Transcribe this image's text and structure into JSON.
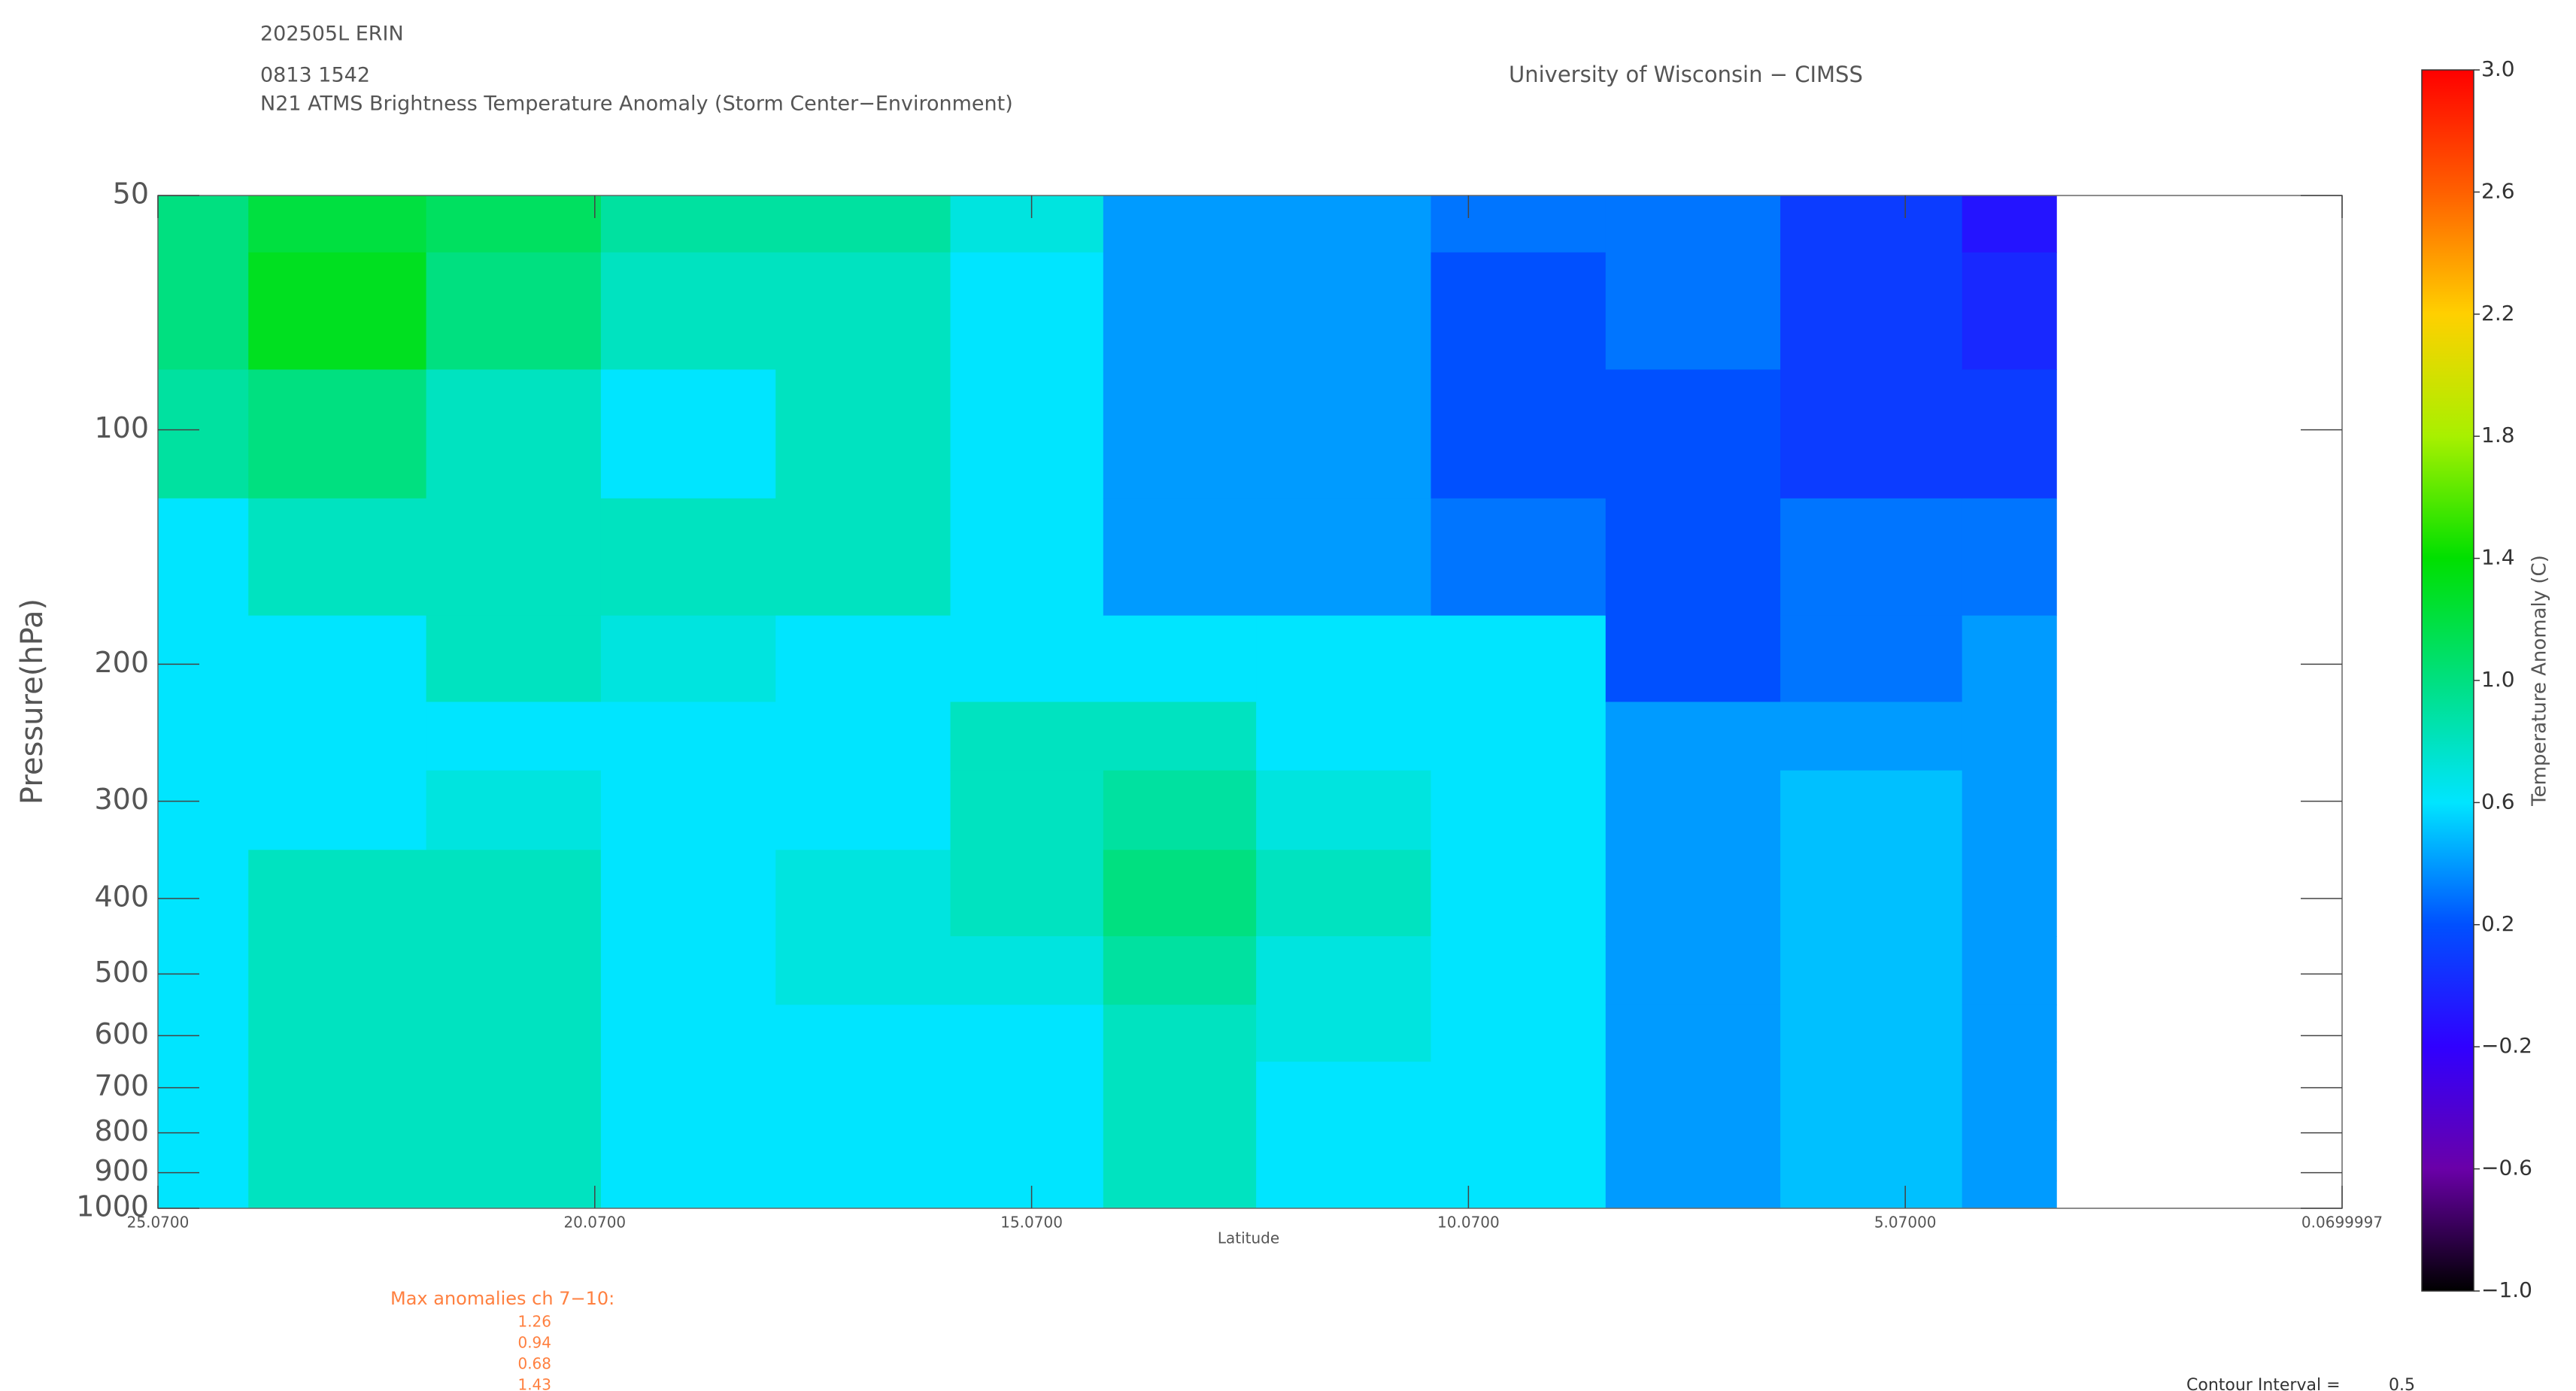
{
  "chart_data": {
    "type": "contour",
    "header": [
      "202505L ERIN",
      "0813 1542",
      "N21 ATMS Brightness Temperature Anomaly (Storm Center−Environment)"
    ],
    "source": "University of Wisconsin − CIMSS",
    "xlabel": "Latitude",
    "ylabel": "Pressure(hPa)",
    "xlim": [
      25.07,
      0.0699997
    ],
    "xticks": [
      {
        "value": 25.07,
        "label": "25.0700"
      },
      {
        "value": 20.07,
        "label": "20.0700"
      },
      {
        "value": 15.07,
        "label": "15.0700"
      },
      {
        "value": 10.07,
        "label": "10.0700"
      },
      {
        "value": 5.07,
        "label": "5.07000"
      },
      0.0699997
    ],
    "ylim": [
      50,
      1000
    ],
    "log_y": true,
    "yticks": [
      50,
      100,
      200,
      300,
      400,
      500,
      600,
      700,
      800,
      900,
      1000
    ],
    "x": [
      25.07,
      23,
      21,
      19,
      17,
      15,
      13.5,
      11.5,
      9.5,
      7.5,
      5.5,
      3.34
    ],
    "levels": [
      50,
      70,
      100,
      150,
      200,
      250,
      300,
      400,
      500,
      600,
      700,
      850,
      1000
    ],
    "z": [
      [
        1.0,
        1.2,
        1.1,
        0.9,
        0.9,
        0.7,
        0.4,
        0.4,
        0.3,
        0.3,
        0.1,
        -0.1
      ],
      [
        1.0,
        1.3,
        1.0,
        0.8,
        0.8,
        0.6,
        0.4,
        0.4,
        0.2,
        0.3,
        0.1,
        0.0
      ],
      [
        0.9,
        1.0,
        0.8,
        0.6,
        0.8,
        0.6,
        0.4,
        0.4,
        0.2,
        0.2,
        0.1,
        0.1
      ],
      [
        0.6,
        0.8,
        0.8,
        0.8,
        0.8,
        0.6,
        0.4,
        0.4,
        0.3,
        0.2,
        0.3,
        0.3
      ],
      [
        0.6,
        0.6,
        0.8,
        0.7,
        0.6,
        0.6,
        0.6,
        0.6,
        0.6,
        0.2,
        0.3,
        0.4
      ],
      [
        0.6,
        0.6,
        0.6,
        0.6,
        0.6,
        0.8,
        0.8,
        0.6,
        0.6,
        0.4,
        0.4,
        0.4
      ],
      [
        0.6,
        0.6,
        0.7,
        0.6,
        0.6,
        0.8,
        0.9,
        0.7,
        0.6,
        0.4,
        0.5,
        0.4
      ],
      [
        0.6,
        0.8,
        0.8,
        0.6,
        0.7,
        0.8,
        1.0,
        0.8,
        0.6,
        0.4,
        0.5,
        0.4
      ],
      [
        0.6,
        0.8,
        0.8,
        0.6,
        0.7,
        0.7,
        0.9,
        0.7,
        0.6,
        0.4,
        0.5,
        0.4
      ],
      [
        0.6,
        0.8,
        0.8,
        0.6,
        0.6,
        0.6,
        0.8,
        0.7,
        0.6,
        0.4,
        0.5,
        0.4
      ],
      [
        0.6,
        0.8,
        0.8,
        0.6,
        0.6,
        0.6,
        0.8,
        0.6,
        0.6,
        0.4,
        0.5,
        0.4
      ],
      [
        0.6,
        0.8,
        0.8,
        0.6,
        0.6,
        0.6,
        0.8,
        0.6,
        0.6,
        0.4,
        0.5,
        0.4
      ],
      [
        0.6,
        0.8,
        0.8,
        0.6,
        0.6,
        0.6,
        0.8,
        0.6,
        0.6,
        0.4,
        0.5,
        0.4
      ]
    ],
    "colorscale": [
      [
        -1,
        "#000000"
      ],
      [
        -0.6,
        "#6a00a8"
      ],
      [
        -0.2,
        "#3000ff"
      ],
      [
        0.2,
        "#0050ff"
      ],
      [
        0.6,
        "#00e5ff"
      ],
      [
        1.0,
        "#00e080"
      ],
      [
        1.4,
        "#00e000"
      ],
      [
        1.8,
        "#a8f000"
      ],
      [
        2.2,
        "#ffd000"
      ],
      [
        2.6,
        "#ff6000"
      ],
      [
        3.0,
        "#ff0000"
      ]
    ],
    "clim": [
      -1,
      3
    ],
    "cticks": [
      {
        "value": 3,
        "label": "3.0"
      },
      {
        "value": 2.6,
        "label": "2.6"
      },
      {
        "value": 2.2,
        "label": "2.2"
      },
      {
        "value": 1.8,
        "label": "1.8"
      },
      {
        "value": 1.4,
        "label": "1.4"
      },
      {
        "value": 1,
        "label": "1.0"
      },
      {
        "value": 0.6,
        "label": "0.6"
      },
      {
        "value": 0.2,
        "label": "0.2"
      },
      {
        "value": -0.2,
        "label": "−0.2"
      },
      {
        "value": -0.6,
        "label": "−0.6"
      },
      {
        "value": -1,
        "label": "−1.0"
      }
    ],
    "clabel": "Temperature Anomaly (C)",
    "max_title": "Max anomalies ch 7−10:",
    "max_anomalies": [
      1.26,
      0.94,
      0.68,
      1.43
    ],
    "contour_interval_label": "Contour Interval =",
    "contour_interval": 0.5
  }
}
